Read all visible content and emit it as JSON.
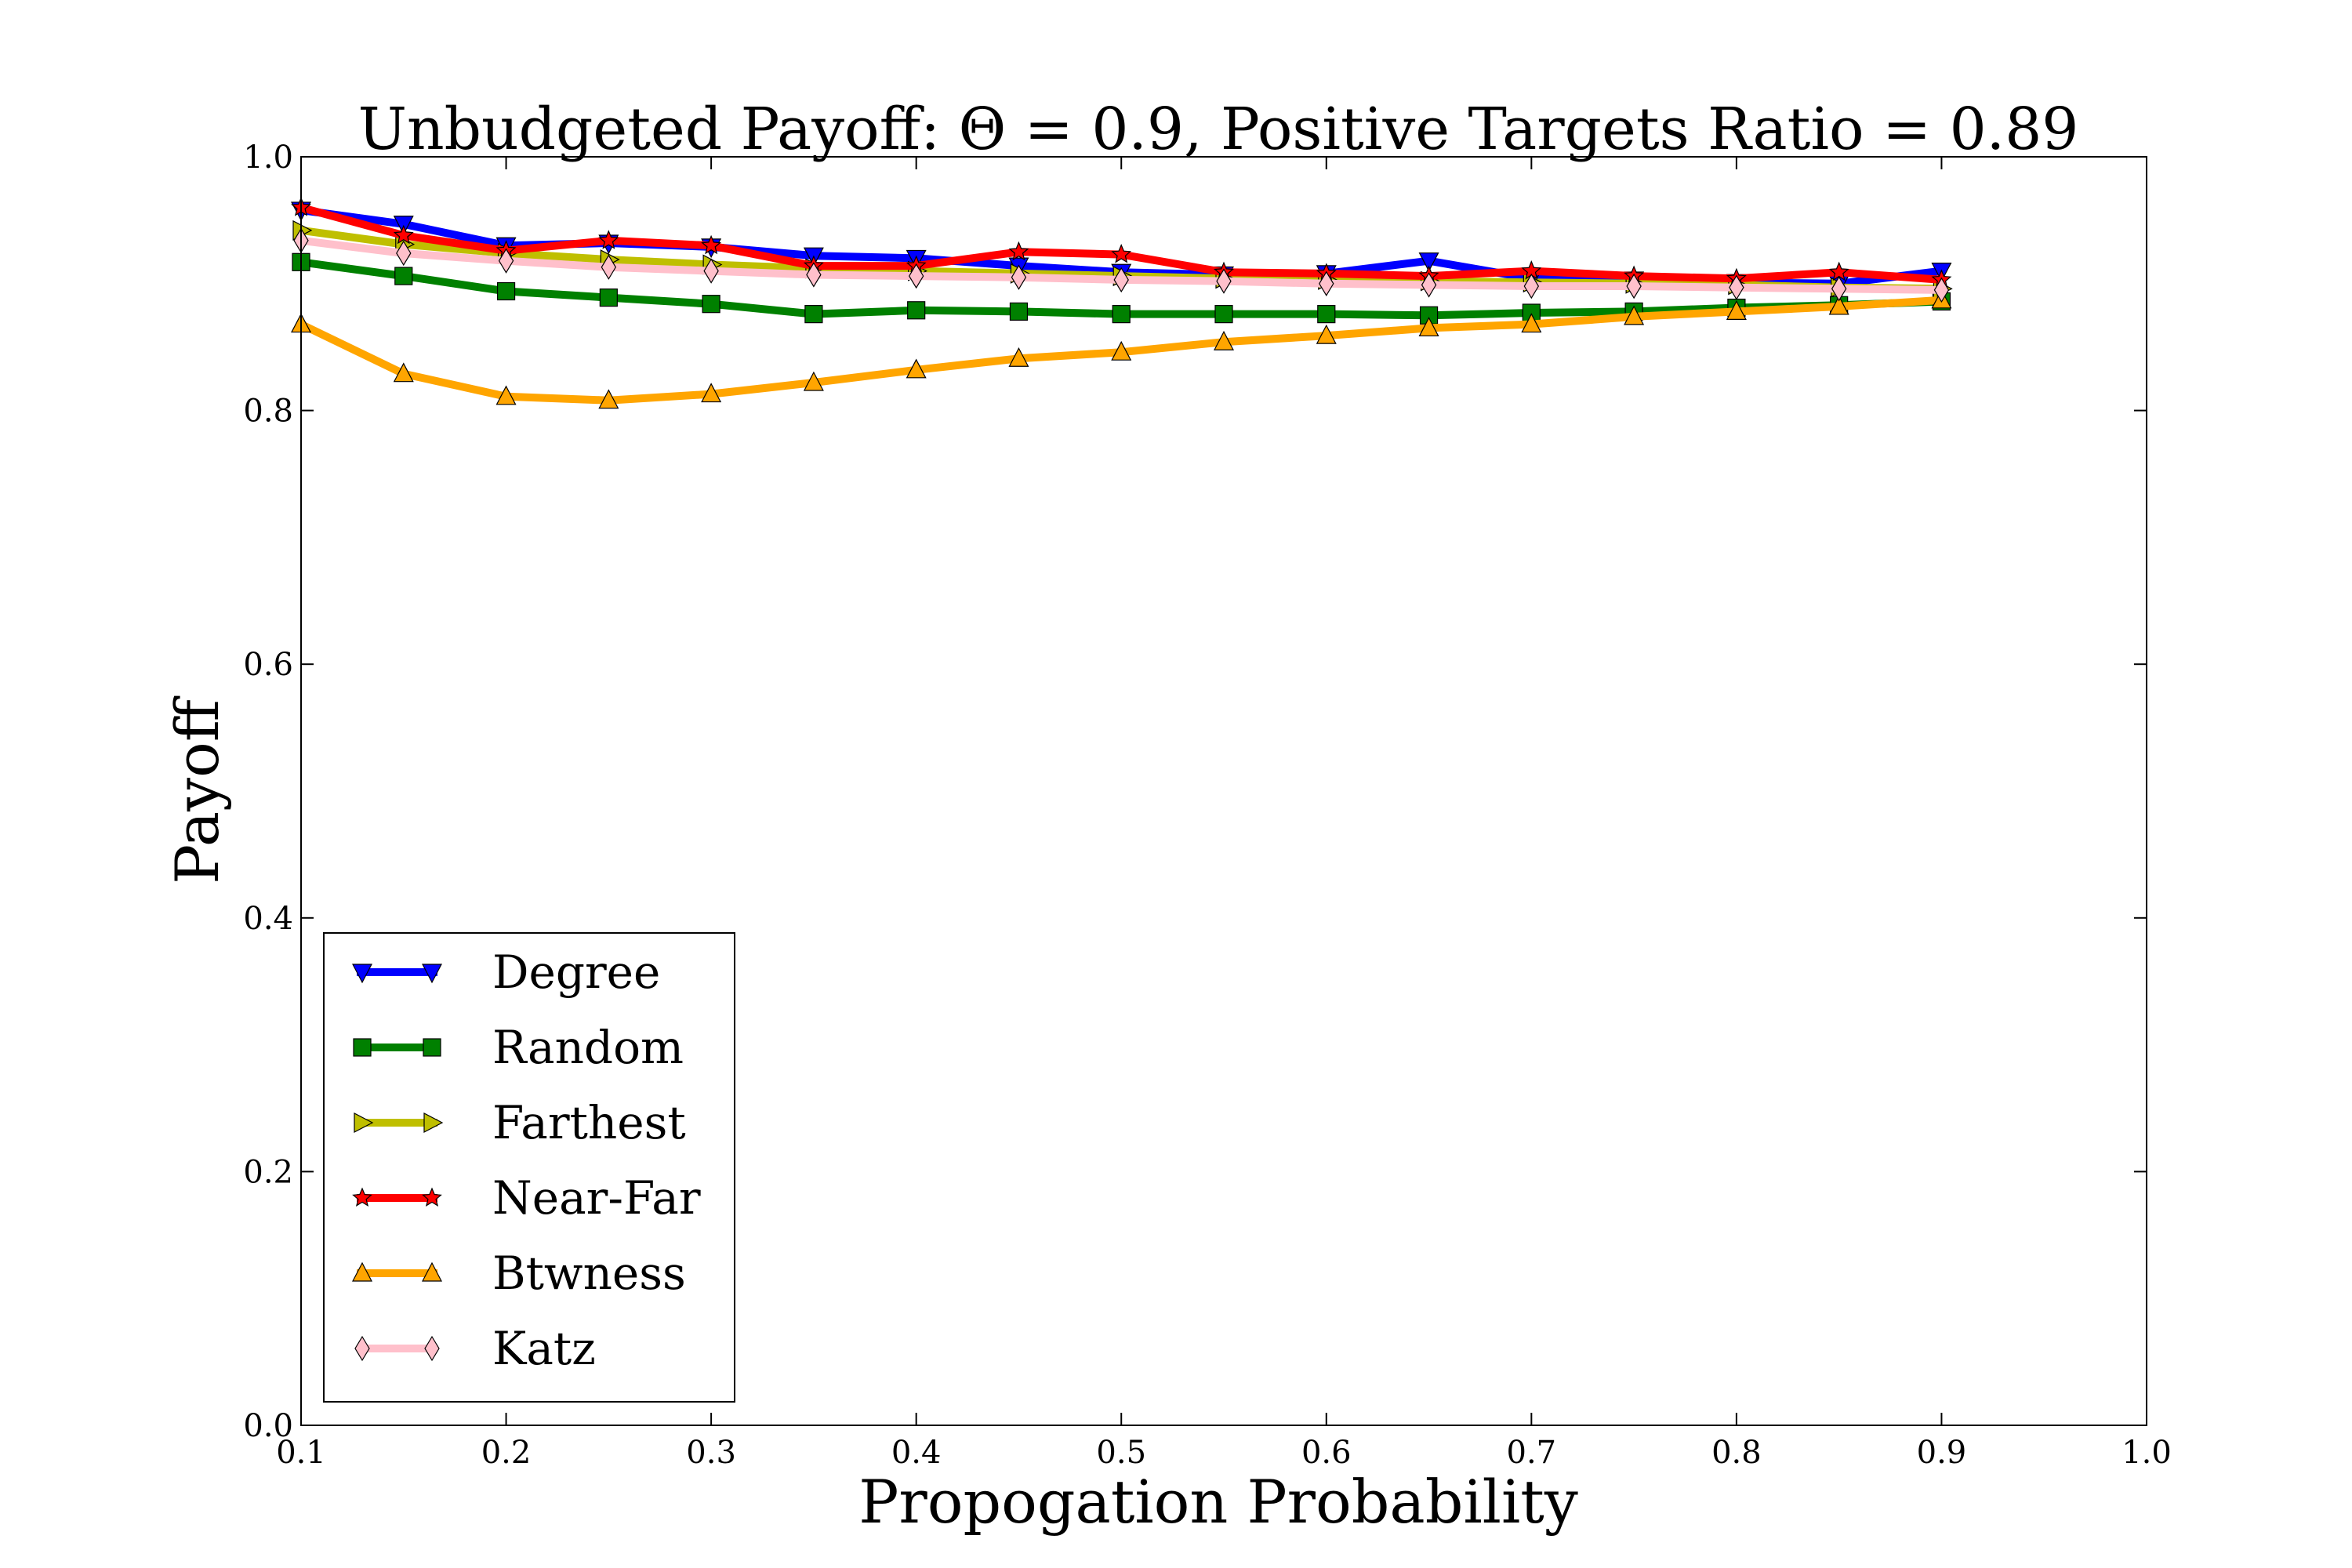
{
  "chart_data": {
    "type": "line",
    "title": "Unbudgeted Payoff: Θ = 0.9, Positive Targets Ratio = 0.89",
    "xlabel": "Propogation Probability",
    "ylabel": "Payoff",
    "xlim": [
      0.1,
      1.0
    ],
    "ylim": [
      0.0,
      1.0
    ],
    "xticks": [
      "0.1",
      "0.2",
      "0.3",
      "0.4",
      "0.5",
      "0.6",
      "0.7",
      "0.8",
      "0.9",
      "1.0"
    ],
    "yticks": [
      "0.0",
      "0.2",
      "0.4",
      "0.6",
      "0.8",
      "1.0"
    ],
    "grid": false,
    "legend_position": "lower-left",
    "x": [
      0.1,
      0.15,
      0.2,
      0.25,
      0.3,
      0.35,
      0.4,
      0.45,
      0.5,
      0.55,
      0.6,
      0.65,
      0.7,
      0.75,
      0.8,
      0.85,
      0.9
    ],
    "series": [
      {
        "name": "Degree",
        "color": "#0000ff",
        "marker": "triangle-down",
        "values": [
          0.958,
          0.947,
          0.93,
          0.932,
          0.929,
          0.922,
          0.92,
          0.914,
          0.909,
          0.907,
          0.908,
          0.918,
          0.904,
          0.903,
          0.901,
          0.9,
          0.91
        ]
      },
      {
        "name": "Random",
        "color": "#008000",
        "marker": "square",
        "values": [
          0.917,
          0.906,
          0.894,
          0.889,
          0.884,
          0.876,
          0.879,
          0.878,
          0.876,
          0.876,
          0.876,
          0.875,
          0.877,
          0.878,
          0.881,
          0.883,
          0.886
        ]
      },
      {
        "name": "Farthest",
        "color": "#bfbf00",
        "marker": "triangle-right",
        "values": [
          0.942,
          0.931,
          0.924,
          0.919,
          0.915,
          0.912,
          0.91,
          0.908,
          0.906,
          0.904,
          0.903,
          0.902,
          0.901,
          0.9,
          0.899,
          0.897,
          0.896
        ]
      },
      {
        "name": "Near-Far",
        "color": "#ff0000",
        "marker": "star",
        "values": [
          0.96,
          0.938,
          0.926,
          0.934,
          0.93,
          0.914,
          0.914,
          0.925,
          0.923,
          0.909,
          0.908,
          0.906,
          0.91,
          0.906,
          0.904,
          0.909,
          0.903
        ]
      },
      {
        "name": "Btwness",
        "color": "#ffa500",
        "marker": "triangle-up",
        "values": [
          0.868,
          0.829,
          0.811,
          0.808,
          0.813,
          0.822,
          0.832,
          0.841,
          0.846,
          0.854,
          0.859,
          0.865,
          0.868,
          0.874,
          0.878,
          0.882,
          0.887
        ]
      },
      {
        "name": "Katz",
        "color": "#ffc0cb",
        "marker": "diamond",
        "values": [
          0.934,
          0.924,
          0.918,
          0.913,
          0.91,
          0.907,
          0.906,
          0.905,
          0.903,
          0.902,
          0.9,
          0.899,
          0.898,
          0.898,
          0.897,
          0.896,
          0.895
        ]
      }
    ]
  }
}
